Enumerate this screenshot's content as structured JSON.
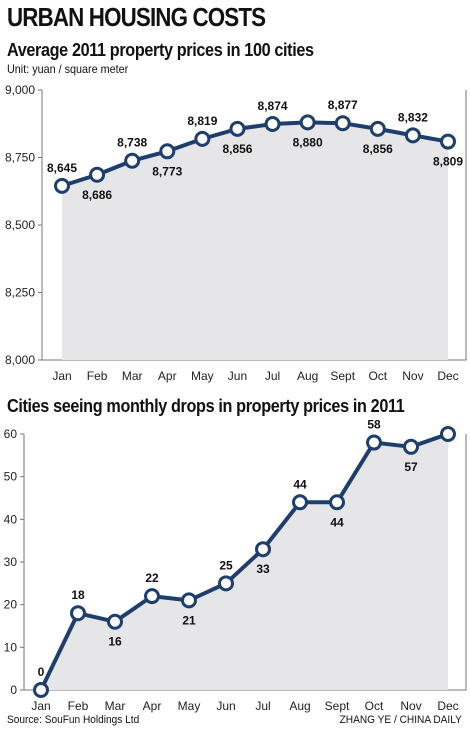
{
  "header": {
    "title": "URBAN HOUSING COSTS"
  },
  "colors": {
    "line": "#1e3f6e",
    "area": "#e6e6e8",
    "marker_fill": "#ffffff"
  },
  "chart_data": [
    {
      "type": "line",
      "title": "Average 2011 property prices in 100 cities",
      "unit": "Unit: yuan / square meter",
      "categories": [
        "Jan",
        "Feb",
        "Mar",
        "Apr",
        "May",
        "Jun",
        "Jul",
        "Aug",
        "Sept",
        "Oct",
        "Nov",
        "Dec"
      ],
      "values": [
        8645,
        8686,
        8738,
        8773,
        8819,
        8856,
        8874,
        8880,
        8877,
        8856,
        8832,
        8809
      ],
      "value_labels": [
        "8,645",
        "8,686",
        "8,738",
        "8,773",
        "8,819",
        "8,856",
        "8,874",
        "8,880",
        "8,877",
        "8,856",
        "8,832",
        "8,809"
      ],
      "label_positions": [
        "above",
        "below",
        "above",
        "below",
        "above",
        "below",
        "above",
        "below",
        "above",
        "below",
        "above",
        "below"
      ],
      "ylim": [
        8000,
        9000
      ],
      "yticks": [
        8000,
        8250,
        8500,
        8750,
        9000
      ],
      "ytick_labels": [
        "8,000",
        "8,250",
        "8,500",
        "8,750",
        "9,000"
      ],
      "fill": "area",
      "grid": false
    },
    {
      "type": "line",
      "title": "Cities seeing monthly drops in property prices in 2011",
      "categories": [
        "Jan",
        "Feb",
        "Mar",
        "Apr",
        "May",
        "Jun",
        "Jul",
        "Aug",
        "Sept",
        "Oct",
        "Nov",
        "Dec"
      ],
      "values": [
        0,
        18,
        16,
        22,
        21,
        25,
        33,
        44,
        44,
        58,
        57,
        60
      ],
      "value_labels": [
        "0",
        "18",
        "16",
        "22",
        "21",
        "25",
        "33",
        "44",
        "44",
        "58",
        "57",
        "60"
      ],
      "label_positions": [
        "above",
        "above",
        "below",
        "above",
        "below",
        "above",
        "below",
        "above",
        "below",
        "above",
        "below",
        "above"
      ],
      "ylim": [
        0,
        60
      ],
      "yticks": [
        0,
        10,
        20,
        30,
        40,
        50,
        60
      ],
      "ytick_labels": [
        "0",
        "10",
        "20",
        "30",
        "40",
        "50",
        "60"
      ],
      "fill": "area",
      "grid": false
    }
  ],
  "footer": {
    "source": "Source: SouFun Holdings Ltd",
    "credit": "ZHANG YE / CHINA DAILY"
  }
}
